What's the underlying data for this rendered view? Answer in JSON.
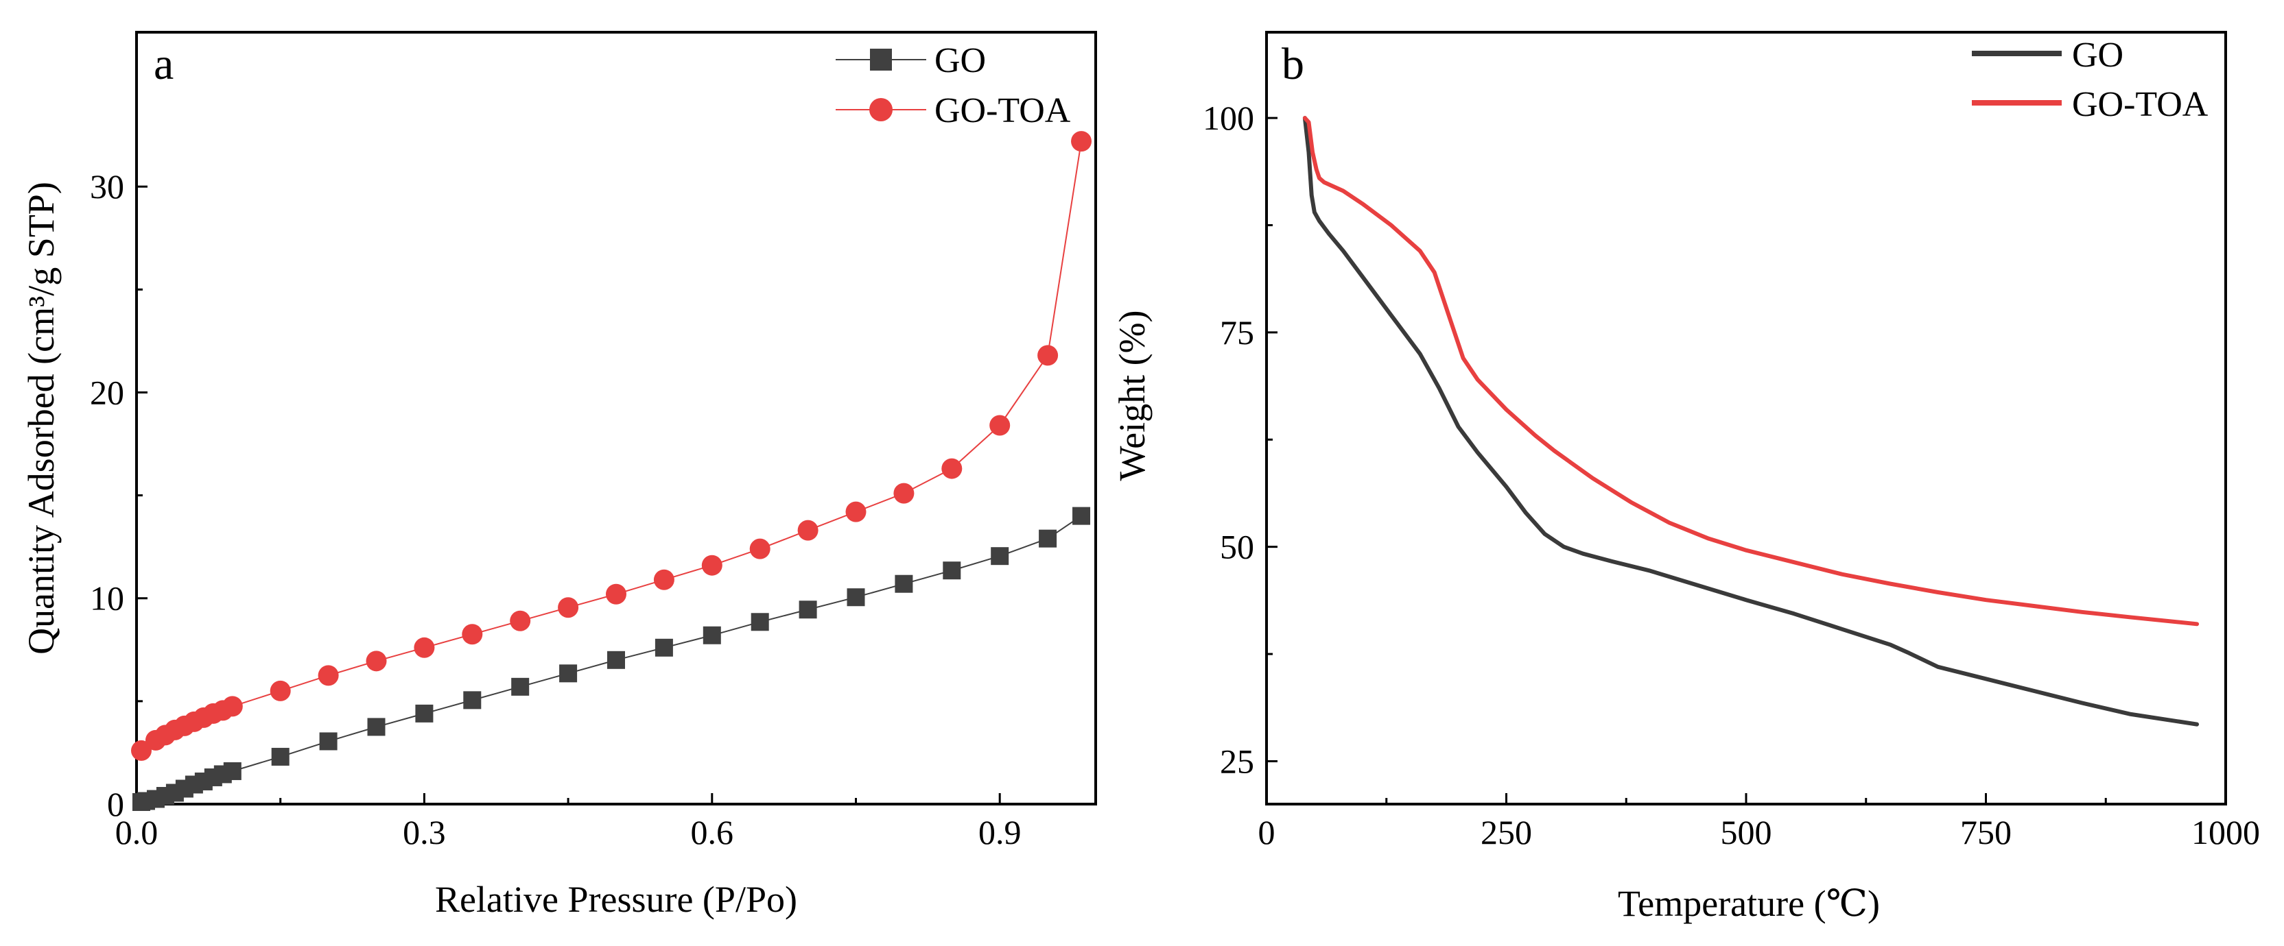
{
  "chart_data": [
    {
      "panel": "a",
      "type": "line",
      "xlabel": "Relative Pressure (P/Po)",
      "ylabel": "Quantity Adsorbed (cm³/g STP)",
      "xlim": [
        0.0,
        1.0
      ],
      "ylim": [
        0,
        37.5
      ],
      "xticks": [
        0.0,
        0.3,
        0.6,
        0.9
      ],
      "xtick_labels": [
        "0.0",
        "0.3",
        "0.6",
        "0.9"
      ],
      "yticks": [
        0,
        10,
        20,
        30
      ],
      "ytick_labels": [
        "0",
        "10",
        "20",
        "30"
      ],
      "grid": false,
      "legend_position": "top-right",
      "series": [
        {
          "name": "GO",
          "color": "#404040",
          "marker": "square",
          "x": [
            0.005,
            0.01,
            0.02,
            0.03,
            0.04,
            0.05,
            0.06,
            0.07,
            0.08,
            0.09,
            0.1,
            0.15,
            0.2,
            0.25,
            0.3,
            0.35,
            0.4,
            0.45,
            0.5,
            0.55,
            0.6,
            0.65,
            0.7,
            0.75,
            0.8,
            0.85,
            0.9,
            0.95,
            0.985
          ],
          "y": [
            0.1,
            0.15,
            0.25,
            0.4,
            0.55,
            0.75,
            0.95,
            1.1,
            1.3,
            1.45,
            1.6,
            2.3,
            3.05,
            3.75,
            4.4,
            5.05,
            5.7,
            6.35,
            7.0,
            7.6,
            8.2,
            8.85,
            9.45,
            10.05,
            10.7,
            11.35,
            12.05,
            12.9,
            14.0
          ]
        },
        {
          "name": "GO-TOA",
          "color": "#e84040",
          "marker": "circle",
          "x": [
            0.005,
            0.02,
            0.03,
            0.04,
            0.05,
            0.06,
            0.07,
            0.08,
            0.09,
            0.1,
            0.15,
            0.2,
            0.25,
            0.3,
            0.35,
            0.4,
            0.45,
            0.5,
            0.55,
            0.6,
            0.65,
            0.7,
            0.75,
            0.8,
            0.85,
            0.9,
            0.95,
            0.985
          ],
          "y": [
            2.6,
            3.1,
            3.35,
            3.6,
            3.8,
            4.0,
            4.2,
            4.4,
            4.55,
            4.75,
            5.5,
            6.25,
            6.95,
            7.6,
            8.25,
            8.9,
            9.55,
            10.2,
            10.9,
            11.6,
            12.4,
            13.3,
            14.2,
            15.1,
            16.3,
            18.4,
            21.8,
            32.2
          ]
        }
      ]
    },
    {
      "panel": "b",
      "type": "line",
      "xlabel": "Temperature (℃)",
      "ylabel": "Weight (%)",
      "xlim": [
        0,
        1000
      ],
      "ylim": [
        20,
        110
      ],
      "xticks": [
        0,
        250,
        500,
        750,
        1000
      ],
      "xtick_labels": [
        "0",
        "250",
        "500",
        "750",
        "1000"
      ],
      "yticks": [
        25,
        50,
        75,
        100
      ],
      "ytick_labels": [
        "25",
        "50",
        "75",
        "100"
      ],
      "grid": false,
      "legend_position": "top-right",
      "series": [
        {
          "name": "GO",
          "color": "#3a3a3a",
          "x": [
            40,
            44,
            47,
            50,
            55,
            65,
            80,
            100,
            130,
            160,
            180,
            200,
            220,
            250,
            270,
            290,
            310,
            330,
            360,
            400,
            450,
            500,
            550,
            600,
            650,
            670,
            700,
            750,
            800,
            850,
            900,
            970
          ],
          "y": [
            100,
            96,
            91,
            89,
            88,
            86.5,
            84.5,
            81.5,
            77,
            72.5,
            68.5,
            64,
            61,
            57,
            54,
            51.5,
            50,
            49.2,
            48.3,
            47.2,
            45.5,
            43.8,
            42.2,
            40.4,
            38.6,
            37.6,
            36,
            34.6,
            33.2,
            31.8,
            30.5,
            29.3
          ]
        },
        {
          "name": "GO-TOA",
          "color": "#e84040",
          "x": [
            40,
            44,
            48,
            52,
            55,
            60,
            80,
            100,
            130,
            160,
            175,
            190,
            205,
            220,
            250,
            280,
            300,
            340,
            380,
            420,
            460,
            500,
            550,
            600,
            650,
            700,
            750,
            800,
            850,
            900,
            970
          ],
          "y": [
            100,
            99.5,
            96,
            94,
            93,
            92.5,
            91.5,
            90,
            87.5,
            84.5,
            82,
            77,
            72,
            69.5,
            66,
            63,
            61.2,
            58,
            55.2,
            52.8,
            51,
            49.6,
            48.2,
            46.8,
            45.7,
            44.7,
            43.8,
            43.1,
            42.4,
            41.8,
            41
          ]
        }
      ]
    }
  ]
}
